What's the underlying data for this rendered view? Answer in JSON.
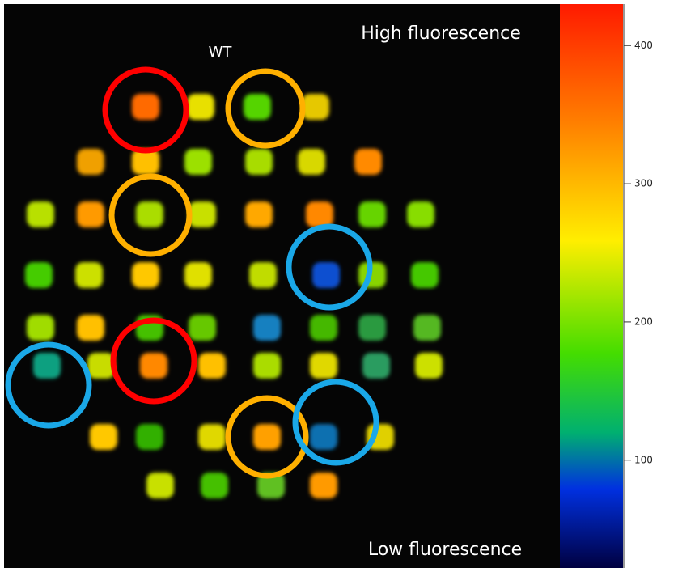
{
  "image": {
    "top_label": "High fluorescence",
    "bottom_label": "Low fluorescence",
    "spot_label": "WT"
  },
  "colorbar": {
    "lim": [
      22,
      430
    ],
    "ticks": [
      100,
      200,
      300,
      400
    ]
  }
}
